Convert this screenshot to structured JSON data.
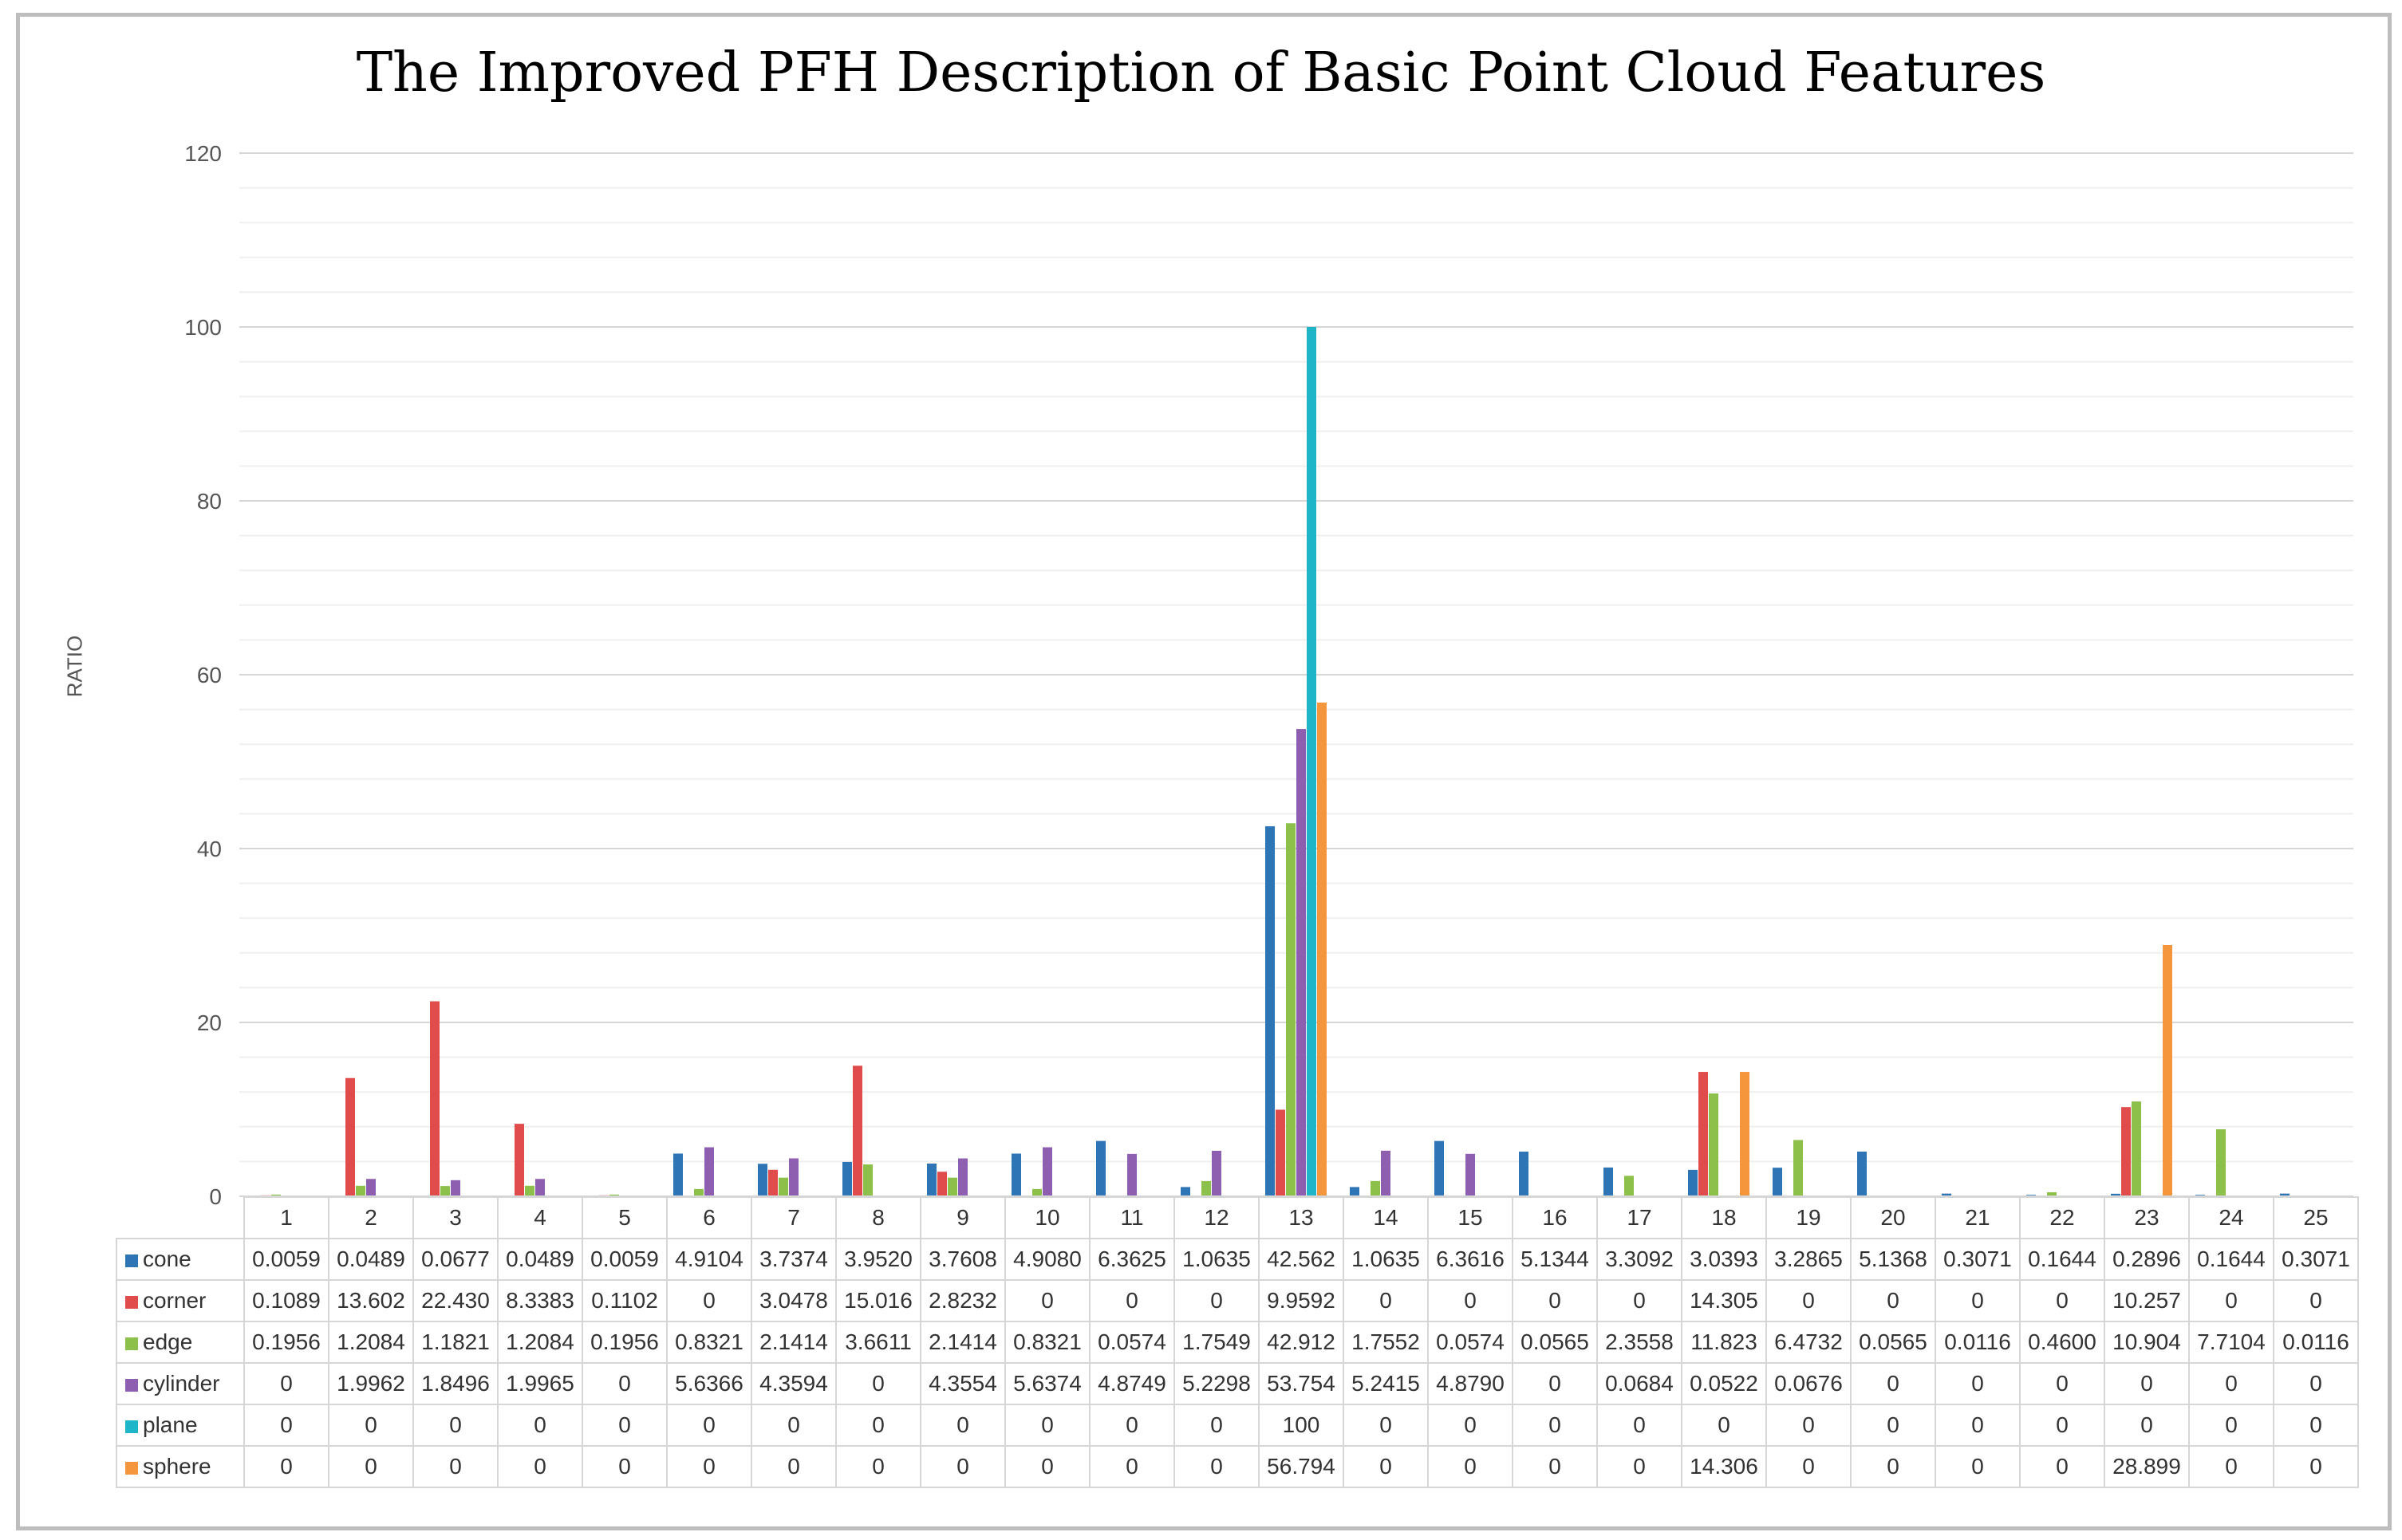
{
  "chart_data": {
    "type": "bar",
    "title": "The Improved PFH Description of Basic Point Cloud Features",
    "xlabel": "",
    "ylabel": "RATIO",
    "ylim": [
      0,
      120
    ],
    "yticks": [
      "0",
      "20",
      "40",
      "60",
      "80",
      "100",
      "120"
    ],
    "grid": true,
    "legend": "data-table",
    "categories": [
      "1",
      "2",
      "3",
      "4",
      "5",
      "6",
      "7",
      "8",
      "9",
      "10",
      "11",
      "12",
      "13",
      "14",
      "15",
      "16",
      "17",
      "18",
      "19",
      "20",
      "21",
      "22",
      "23",
      "24",
      "25"
    ],
    "series": [
      {
        "name": "cone",
        "color": "#2e75b6",
        "values": [
          0.0059,
          0.0489,
          0.0677,
          0.0489,
          0.0059,
          4.9104,
          3.7374,
          3.952,
          3.7608,
          4.908,
          6.3625,
          1.0635,
          42.562,
          1.0635,
          6.3616,
          5.1344,
          3.3092,
          3.0393,
          3.2865,
          5.1368,
          0.3071,
          0.1644,
          0.2896,
          0.1644,
          0.3071
        ],
        "labels": [
          "0.0059",
          "0.0489",
          "0.0677",
          "0.0489",
          "0.0059",
          "4.9104",
          "3.7374",
          "3.9520",
          "3.7608",
          "4.9080",
          "6.3625",
          "1.0635",
          "42.562",
          "1.0635",
          "6.3616",
          "5.1344",
          "3.3092",
          "3.0393",
          "3.2865",
          "5.1368",
          "0.3071",
          "0.1644",
          "0.2896",
          "0.1644",
          "0.3071"
        ]
      },
      {
        "name": "corner",
        "color": "#e04b4b",
        "values": [
          0.1089,
          13.602,
          22.43,
          8.3383,
          0.1102,
          0,
          3.0478,
          15.016,
          2.8232,
          0,
          0,
          0,
          9.9592,
          0,
          0,
          0,
          0,
          14.305,
          0,
          0,
          0,
          0,
          10.257,
          0,
          0
        ],
        "labels": [
          "0.1089",
          "13.602",
          "22.430",
          "8.3383",
          "0.1102",
          "0",
          "3.0478",
          "15.016",
          "2.8232",
          "0",
          "0",
          "0",
          "9.9592",
          "0",
          "0",
          "0",
          "0",
          "14.305",
          "0",
          "0",
          "0",
          "0",
          "10.257",
          "0",
          "0"
        ]
      },
      {
        "name": "edge",
        "color": "#8cc04b",
        "values": [
          0.1956,
          1.2084,
          1.1821,
          1.2084,
          0.1956,
          0.8321,
          2.1414,
          3.6611,
          2.1414,
          0.8321,
          0.0574,
          1.7549,
          42.912,
          1.7552,
          0.0574,
          0.0565,
          2.3558,
          11.823,
          6.4732,
          0.0565,
          0.0116,
          0.46,
          10.904,
          7.7104,
          0.0116
        ],
        "labels": [
          "0.1956",
          "1.2084",
          "1.1821",
          "1.2084",
          "0.1956",
          "0.8321",
          "2.1414",
          "3.6611",
          "2.1414",
          "0.8321",
          "0.0574",
          "1.7549",
          "42.912",
          "1.7552",
          "0.0574",
          "0.0565",
          "2.3558",
          "11.823",
          "6.4732",
          "0.0565",
          "0.0116",
          "0.4600",
          "10.904",
          "7.7104",
          "0.0116"
        ]
      },
      {
        "name": "cylinder",
        "color": "#8e5fb0",
        "values": [
          0,
          1.9962,
          1.8496,
          1.9965,
          0,
          5.6366,
          4.3594,
          0,
          4.3554,
          5.6374,
          4.8749,
          5.2298,
          53.754,
          5.2415,
          4.879,
          0,
          0.0684,
          0.0522,
          0.0676,
          0,
          0,
          0,
          0,
          0,
          0
        ],
        "labels": [
          "0",
          "1.9962",
          "1.8496",
          "1.9965",
          "0",
          "5.6366",
          "4.3594",
          "0",
          "4.3554",
          "5.6374",
          "4.8749",
          "5.2298",
          "53.754",
          "5.2415",
          "4.8790",
          "0",
          "0.0684",
          "0.0522",
          "0.0676",
          "0",
          "0",
          "0",
          "0",
          "0",
          "0"
        ]
      },
      {
        "name": "plane",
        "color": "#1fb5c9",
        "values": [
          0,
          0,
          0,
          0,
          0,
          0,
          0,
          0,
          0,
          0,
          0,
          0,
          100,
          0,
          0,
          0,
          0,
          0,
          0,
          0,
          0,
          0,
          0,
          0,
          0
        ],
        "labels": [
          "0",
          "0",
          "0",
          "0",
          "0",
          "0",
          "0",
          "0",
          "0",
          "0",
          "0",
          "0",
          "100",
          "0",
          "0",
          "0",
          "0",
          "0",
          "0",
          "0",
          "0",
          "0",
          "0",
          "0",
          "0"
        ]
      },
      {
        "name": "sphere",
        "color": "#f5963c",
        "values": [
          0,
          0,
          0,
          0,
          0,
          0,
          0,
          0,
          0,
          0,
          0,
          0,
          56.794,
          0,
          0,
          0,
          0,
          14.306,
          0,
          0,
          0,
          0,
          28.899,
          0,
          0
        ],
        "labels": [
          "0",
          "0",
          "0",
          "0",
          "0",
          "0",
          "0",
          "0",
          "0",
          "0",
          "0",
          "0",
          "56.794",
          "0",
          "0",
          "0",
          "0",
          "14.306",
          "0",
          "0",
          "0",
          "0",
          "28.899",
          "0",
          "0"
        ]
      }
    ]
  }
}
